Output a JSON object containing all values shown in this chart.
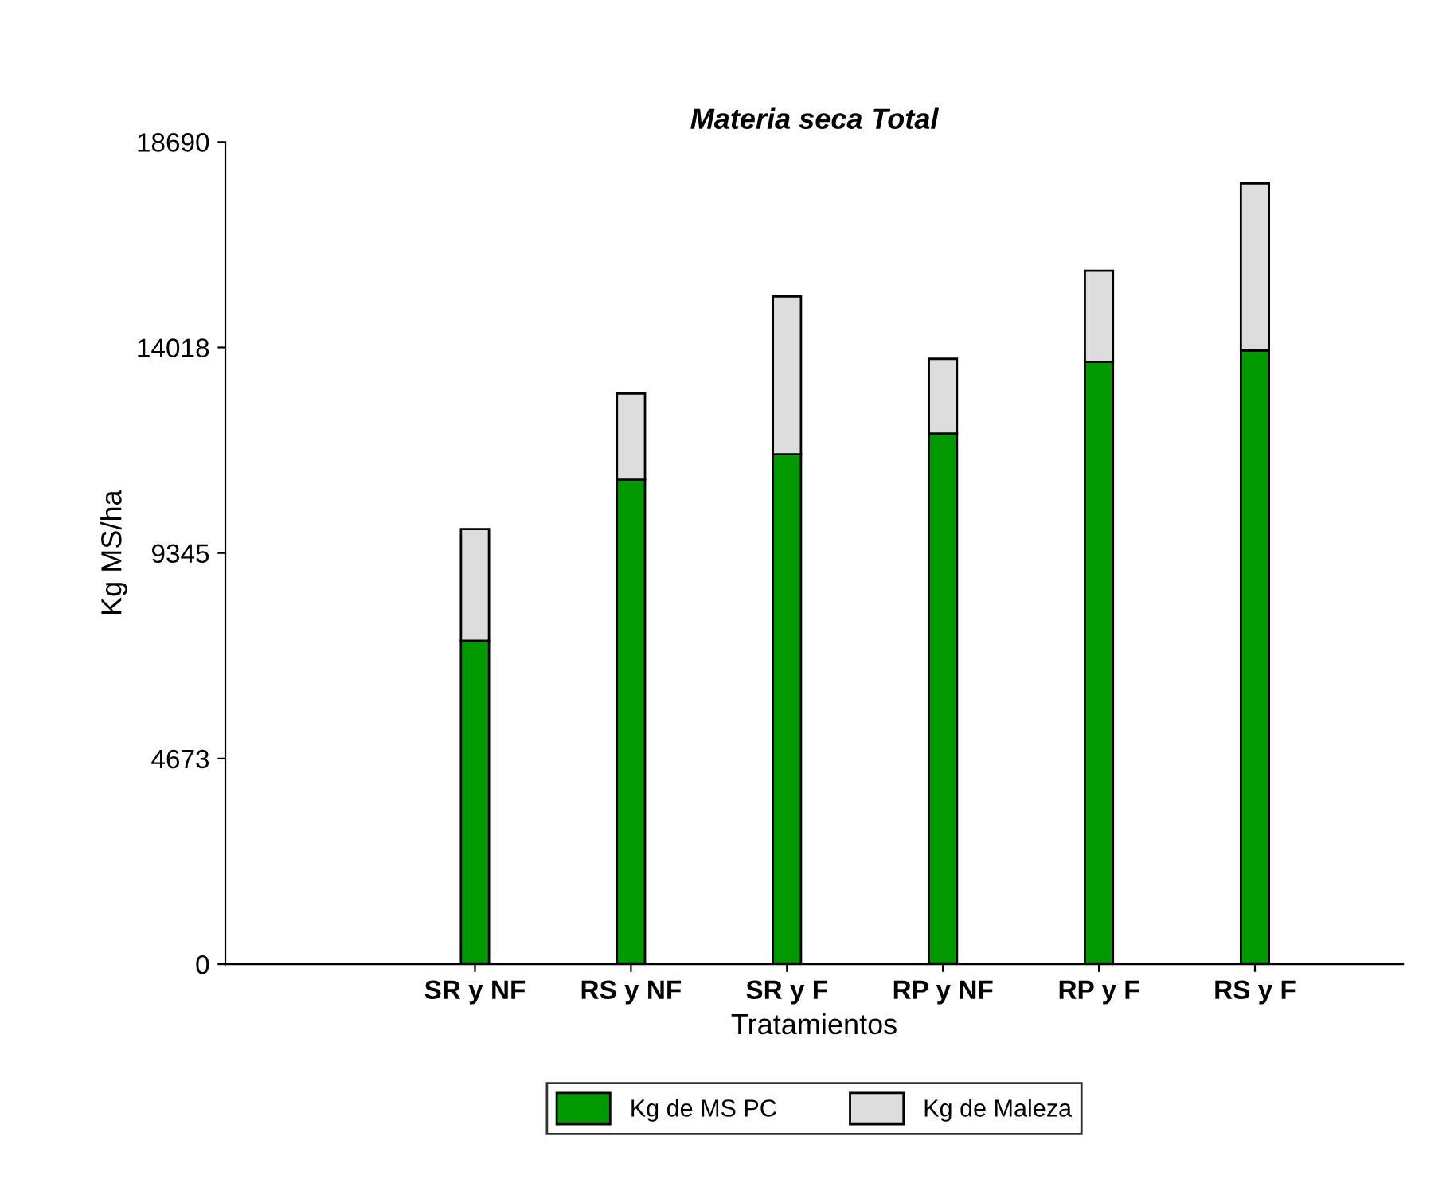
{
  "chart_data": {
    "type": "bar",
    "title": "Materia seca Total",
    "xlabel": "Tratamientos",
    "ylabel": "Kg MS/ha",
    "categories": [
      "SR y NF",
      "RS y NF",
      "SR y F",
      "RP y NF",
      "RP y F",
      "RS y F"
    ],
    "stacked": true,
    "series": [
      {
        "name": "Kg de MS PC",
        "color": "#009900",
        "values": [
          7350,
          11010,
          11590,
          12060,
          13690,
          13950
        ]
      },
      {
        "name": "Kg de Maleza",
        "color": "#dddddd",
        "values": [
          2540,
          1960,
          3590,
          1700,
          2070,
          3800
        ]
      }
    ],
    "ylim": [
      0,
      18690
    ],
    "yticks": [
      0,
      4673,
      9345,
      14018,
      18690
    ],
    "grid": false,
    "legend": "bottom"
  }
}
